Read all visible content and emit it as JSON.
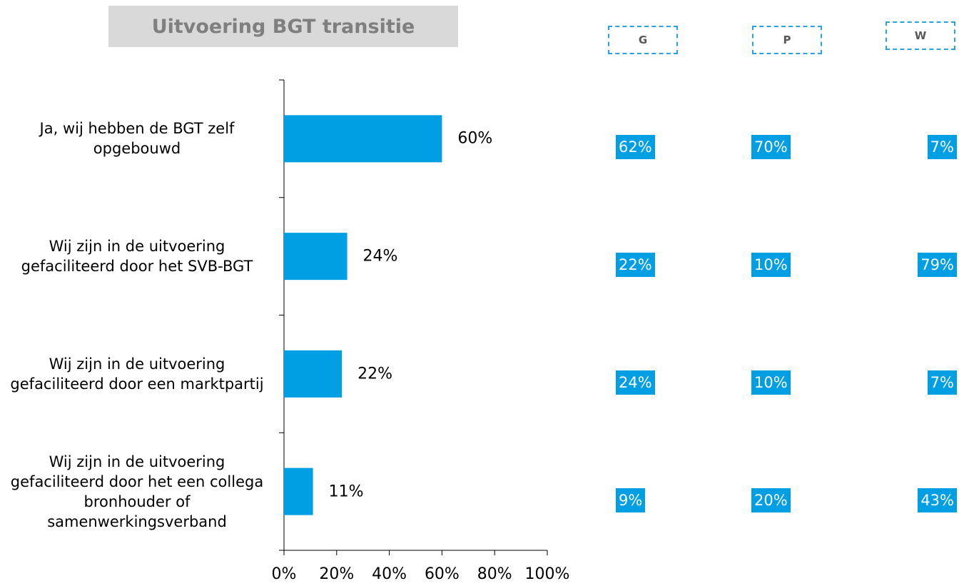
{
  "chart_data": {
    "type": "barh",
    "title": "Uitvoering BGT transitie",
    "categories": [
      "Ja, wij hebben de BGT zelf opgebouwd",
      "Wij zijn in de uitvoering gefaciliteerd door het SVB-BGT",
      "Wij zijn in de uitvoering gefaciliteerd door een marktpartij",
      "Wij zijn in de uitvoering gefaciliteerd door het een collega bronhouder of samenwerkingsverband"
    ],
    "values": [
      60,
      24,
      22,
      11
    ],
    "value_labels": [
      "60%",
      "24%",
      "22%",
      "11%"
    ],
    "color": "#009fe3",
    "xlim": [
      0,
      100
    ],
    "xticks": [
      {
        "value": 0,
        "label": "0%"
      },
      {
        "value": 20,
        "label": "20%"
      },
      {
        "value": 40,
        "label": "40%"
      },
      {
        "value": 60,
        "label": "60%"
      },
      {
        "value": 80,
        "label": "80%"
      },
      {
        "value": 100,
        "label": "100%"
      }
    ],
    "breakdown": [
      {
        "name": "G",
        "cells": [
          "62%",
          "22%",
          "24%",
          "9%"
        ]
      },
      {
        "name": "P",
        "cells": [
          "70%",
          "10%",
          "10%",
          "20%"
        ]
      },
      {
        "name": "W",
        "cells": [
          "7%",
          "79%",
          "7%",
          "43%"
        ]
      }
    ]
  }
}
